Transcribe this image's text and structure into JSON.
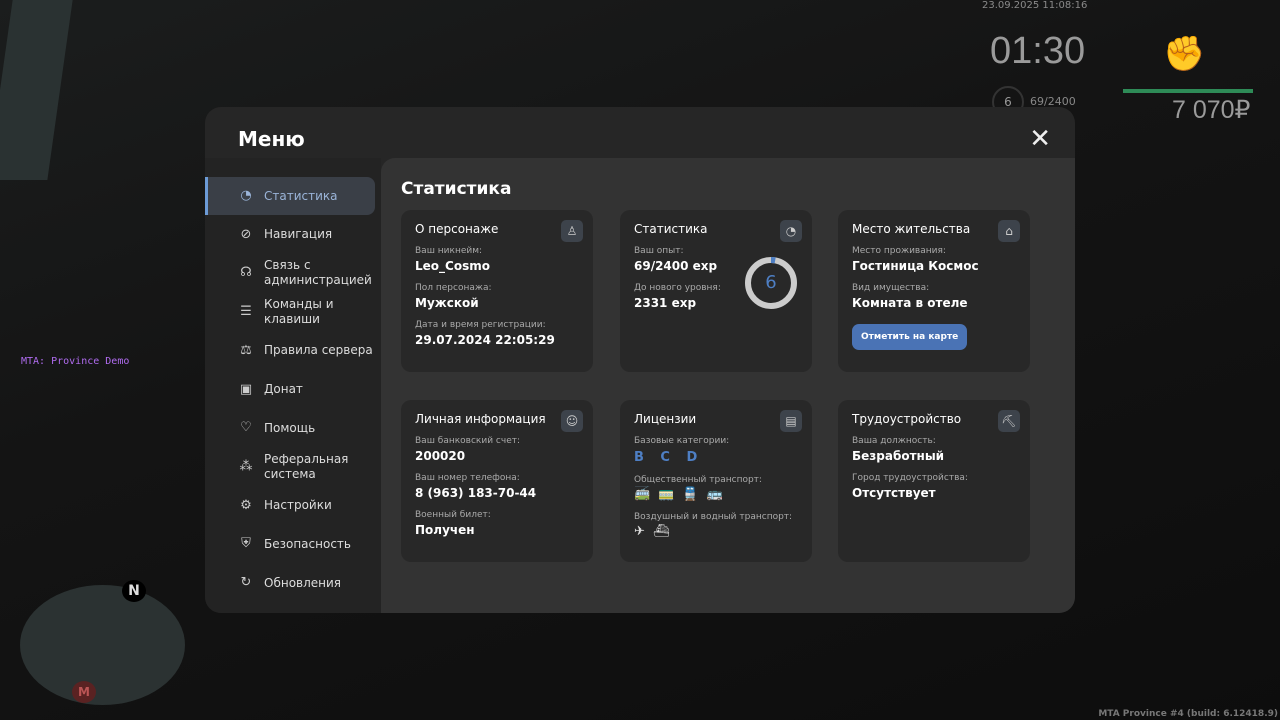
{
  "hud": {
    "datetime": "23.09.2025 11:08:16",
    "time": "01:30",
    "level": "6",
    "exp": "69/2400",
    "money": "7 070₽",
    "fist_icon": "raised-fist-icon",
    "health_color": "#2e8b57"
  },
  "server_label": "MTA: Province Demo",
  "build": "MTA Province #4 (build: 6.12418.9)",
  "minimap": {
    "north": "N",
    "metro": "M"
  },
  "menu": {
    "title": "Меню",
    "close": "✕",
    "sidebar": [
      {
        "label": "Статистика",
        "icon": "pie-chart-icon",
        "glyph": "◔",
        "active": true
      },
      {
        "label": "Навигация",
        "icon": "compass-icon",
        "glyph": "⊘"
      },
      {
        "label": "Связь с администрацией",
        "icon": "headset-icon",
        "glyph": "☊"
      },
      {
        "label": "Команды и клавиши",
        "icon": "document-icon",
        "glyph": "☰"
      },
      {
        "label": "Правила сервера",
        "icon": "scales-icon",
        "glyph": "⚖"
      },
      {
        "label": "Донат",
        "icon": "wallet-icon",
        "glyph": "▣"
      },
      {
        "label": "Помощь",
        "icon": "heart-hand-icon",
        "glyph": "♡"
      },
      {
        "label": "Реферальная система",
        "icon": "referral-icon",
        "glyph": "⁂"
      },
      {
        "label": "Настройки",
        "icon": "gear-icon",
        "glyph": "⚙"
      },
      {
        "label": "Безопасность",
        "icon": "shield-icon",
        "glyph": "⛨"
      },
      {
        "label": "Обновления",
        "icon": "refresh-check-icon",
        "glyph": "↻"
      }
    ],
    "content_title": "Статистика",
    "cards": {
      "character": {
        "title": "О персонаже",
        "icon": "user-icon",
        "glyph": "♙",
        "nick_label": "Ваш никнейм:",
        "nick": "Leo_Cosmo",
        "sex_label": "Пол персонажа:",
        "sex": "Мужской",
        "reg_label": "Дата и время регистрации:",
        "reg": "29.07.2024 22:05:29"
      },
      "stats": {
        "title": "Статистика",
        "icon": "pie-chart-icon",
        "glyph": "◔",
        "exp_label": "Ваш опыт:",
        "exp": "69/2400 exp",
        "next_label": "До нового уровня:",
        "next": "2331 exp",
        "level": "6",
        "progress": 0.029
      },
      "residence": {
        "title": "Место жительства",
        "icon": "home-icon",
        "glyph": "⌂",
        "place_label": "Место проживания:",
        "place": "Гостиница Космос",
        "type_label": "Вид имущества:",
        "type": "Комната в отеле",
        "button": "Отметить на карте"
      },
      "personal": {
        "title": "Личная информация",
        "icon": "user-circle-icon",
        "glyph": "☺",
        "bank_label": "Ваш банковский счет:",
        "bank": "200020",
        "phone_label": "Ваш номер телефона:",
        "phone": "8 (963) 183-70-44",
        "military_label": "Военный билет:",
        "military": "Получен"
      },
      "licenses": {
        "title": "Лицензии",
        "icon": "license-icon",
        "glyph": "▤",
        "base_label": "Базовые категории:",
        "base": "B C D",
        "public_label": "Общественный транспорт:",
        "public_icons": "🚎🚃🚆🚌",
        "air_label": "Воздушный и водный транспорт:",
        "air_icons": "✈⛴"
      },
      "job": {
        "title": "Трудоустройство",
        "icon": "pickaxe-icon",
        "glyph": "⛏",
        "position_label": "Ваша должность:",
        "position": "Безработный",
        "city_label": "Город трудоустройства:",
        "city": "Отсутствует"
      }
    }
  },
  "accent": "#4e7fc4"
}
